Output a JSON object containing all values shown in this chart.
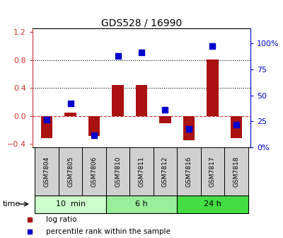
{
  "title": "GDS528 / 16990",
  "samples": [
    "GSM7804",
    "GSM7805",
    "GSM7806",
    "GSM7810",
    "GSM7811",
    "GSM7812",
    "GSM7816",
    "GSM7817",
    "GSM7818"
  ],
  "log_ratio": [
    -0.32,
    0.05,
    -0.28,
    0.44,
    0.44,
    -0.1,
    -0.35,
    0.81,
    -0.32
  ],
  "percentile": [
    27,
    42,
    12,
    88,
    91,
    36,
    18,
    97,
    22
  ],
  "groups": [
    {
      "label": "10  min",
      "start": 0,
      "end": 3,
      "color": "#ccffcc"
    },
    {
      "label": "6 h",
      "start": 3,
      "end": 6,
      "color": "#99ee99"
    },
    {
      "label": "24 h",
      "start": 6,
      "end": 9,
      "color": "#44dd44"
    }
  ],
  "bar_color": "#aa1111",
  "dot_color": "#0000cc",
  "ylim_left": [
    -0.45,
    1.25
  ],
  "yticks_left": [
    -0.4,
    0.0,
    0.4,
    0.8,
    1.2
  ],
  "ylim_right": [
    0,
    114
  ],
  "yticks_right": [
    0,
    25,
    50,
    75,
    100
  ],
  "yticklabels_right": [
    "0%",
    "25",
    "50",
    "75",
    "100%"
  ],
  "hlines": [
    0.4,
    0.8
  ],
  "zero_line_color": "#cc3333",
  "dot_size": 40,
  "bar_width": 0.5,
  "legend_log_ratio": "log ratio",
  "legend_percentile": "percentile rank within the sample",
  "time_label": "time",
  "background_color": "#ffffff",
  "label_box_color": "#d0d0d0",
  "title_fontsize": 10,
  "tick_fontsize": 8,
  "label_fontsize": 6.5,
  "group_fontsize": 8,
  "legend_fontsize": 7.5
}
